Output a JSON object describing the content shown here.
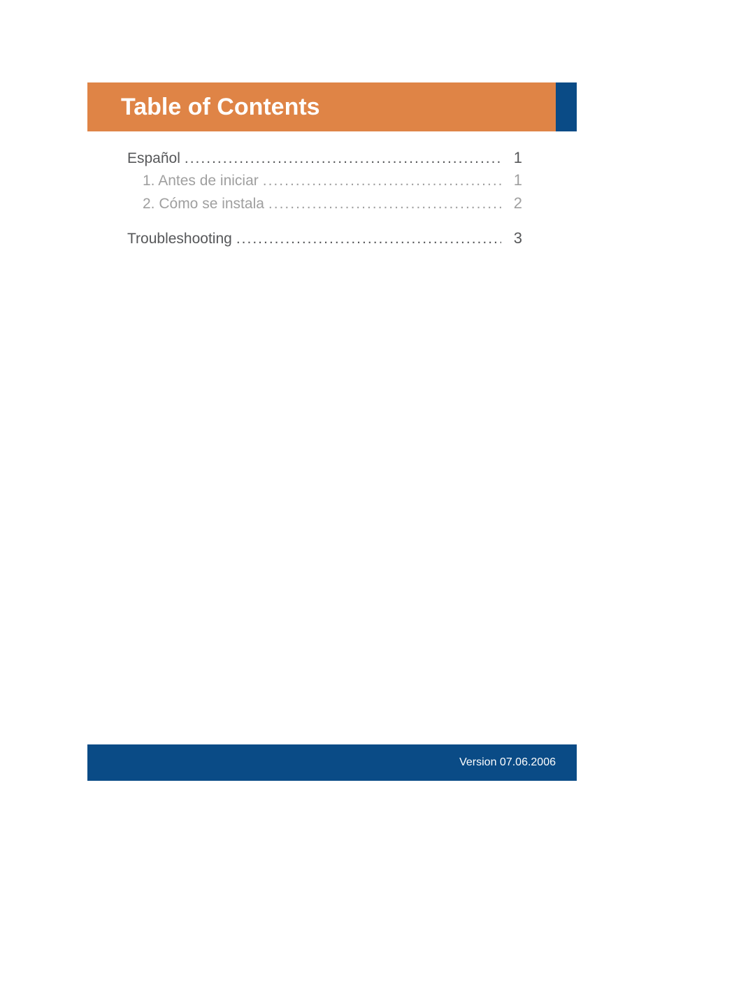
{
  "colors": {
    "header_bg": "#df8446",
    "header_text": "#ffffff",
    "accent_bg": "#0a4b86",
    "footer_bg": "#0a4b86",
    "toc_main_text": "#565759",
    "toc_sub_text": "#9f9f9f",
    "page_bg": "#ffffff"
  },
  "header": {
    "title": "Table of Contents"
  },
  "toc": {
    "entries": [
      {
        "label": "Español",
        "page": "1",
        "level": "main"
      },
      {
        "label": "1. Antes de iniciar",
        "page": "1",
        "level": "sub"
      },
      {
        "label": "2. Cómo se instala",
        "page": "2",
        "level": "sub"
      },
      {
        "label": "Troubleshooting",
        "page": "3",
        "level": "main",
        "section_break": true
      }
    ]
  },
  "footer": {
    "text": "Version 07.06.2006"
  }
}
